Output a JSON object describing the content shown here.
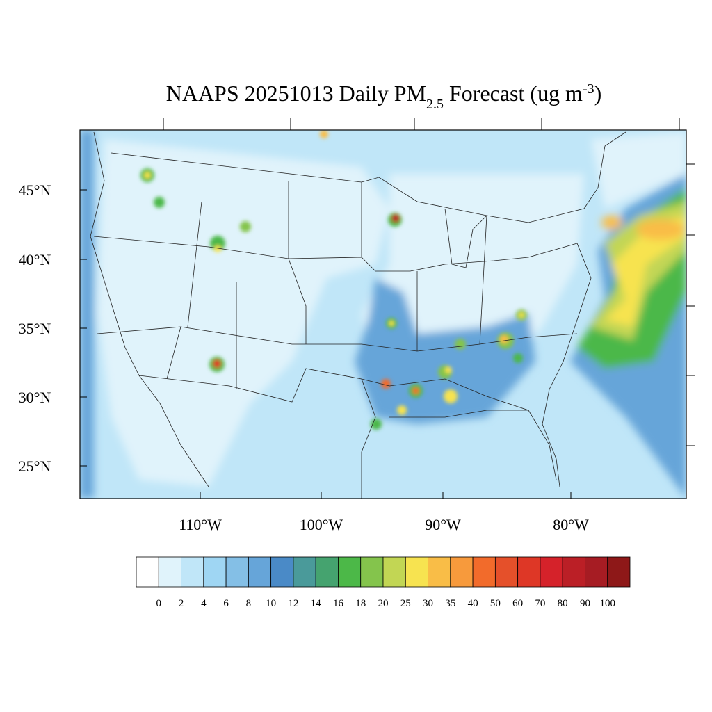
{
  "title": {
    "main": "NAAPS 20251013 Daily PM",
    "sub": "2.5",
    "mid": " Forecast (ug m",
    "sup": "-3",
    "end": ")"
  },
  "map": {
    "lat_labels": [
      "45°N",
      "40°N",
      "35°N",
      "30°N",
      "25°N"
    ],
    "lon_labels": [
      "110°W",
      "100°W",
      "90°W",
      "80°W"
    ]
  },
  "colorbar": {
    "colors": [
      "#ffffff",
      "#e0f3fb",
      "#c0e6f8",
      "#9fd6f3",
      "#84bfe6",
      "#66a5d9",
      "#4a8ac7",
      "#4a9a9a",
      "#45a36f",
      "#4cb848",
      "#84c44c",
      "#c2d654",
      "#f7e350",
      "#f9bd47",
      "#f79a3c",
      "#f26b2b",
      "#e5502a",
      "#de3726",
      "#d5222a",
      "#bb1f26",
      "#a61c23",
      "#8e1818"
    ],
    "labels": [
      "0",
      "2",
      "4",
      "6",
      "8",
      "10",
      "12",
      "14",
      "16",
      "18",
      "20",
      "25",
      "30",
      "35",
      "40",
      "50",
      "60",
      "70",
      "80",
      "90",
      "100"
    ]
  }
}
